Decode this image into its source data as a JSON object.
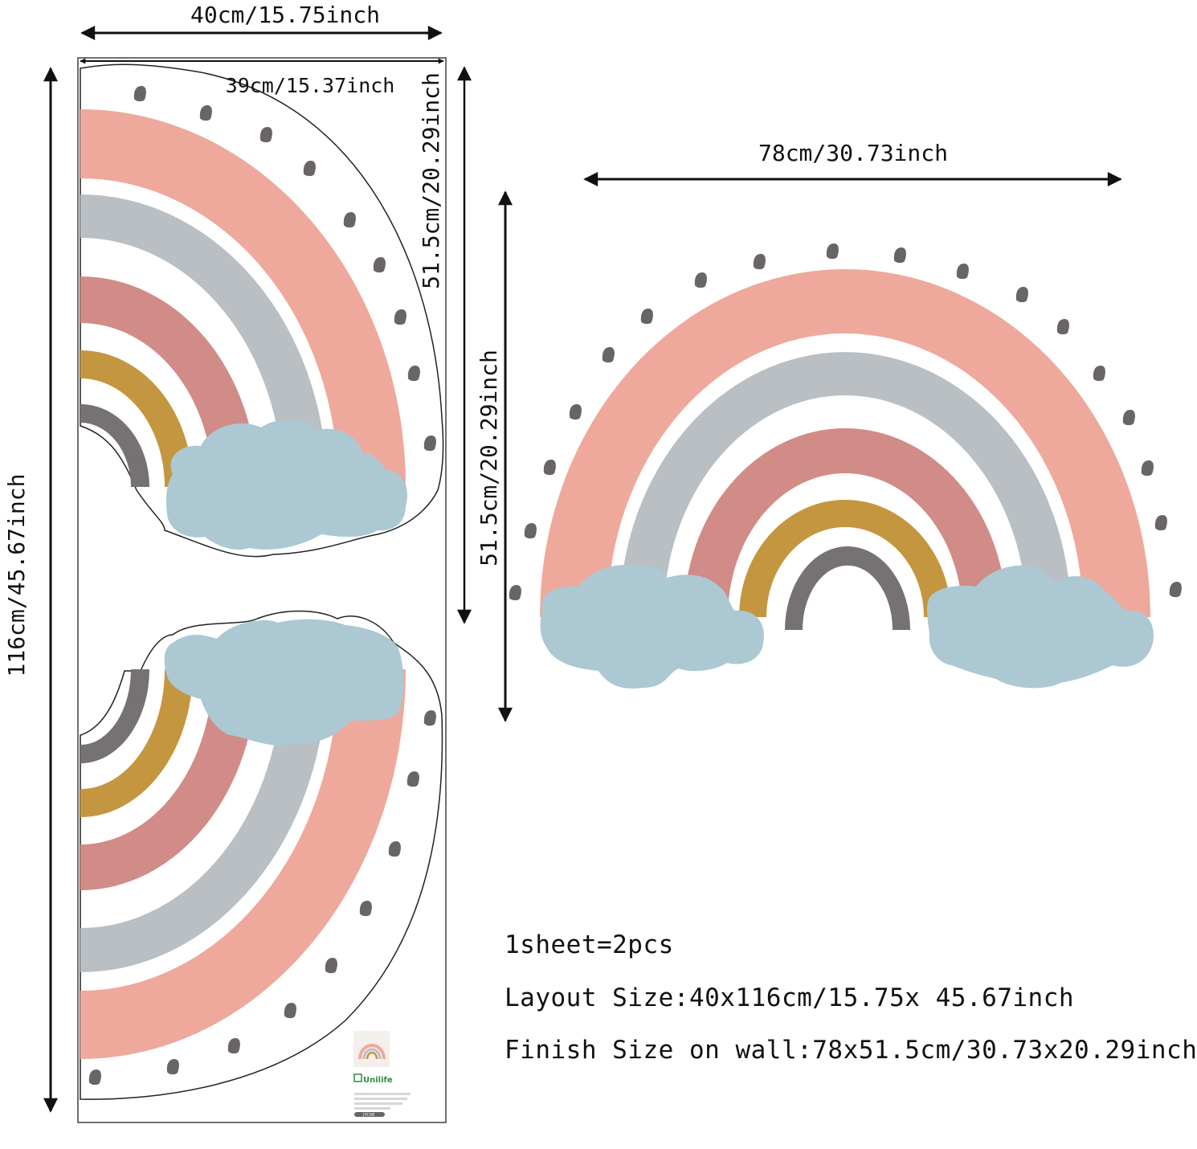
{
  "dimensions": {
    "sheet_width": "40cm/15.75inch",
    "inner_width": "39cm/15.37inch",
    "half_height": "51.5cm/20.29inch",
    "sheet_height": "116cm/45.67inch",
    "finished_width": "78cm/30.73inch",
    "finished_height": "51.5cm/20.29inch"
  },
  "info": {
    "line1": "1sheet=2pcs",
    "line2": "Layout Size:40x116cm/15.75x 45.67inch",
    "line3": "Finish Size on wall:78x51.5cm/30.73x20.29inch"
  },
  "label": {
    "brand": "Unilife",
    "code": "JYC08"
  },
  "colors": {
    "pink": "#eea99c",
    "gray": "#b9bfc3",
    "rose": "#d18c88",
    "mustard": "#c4963f",
    "charcoal": "#767172",
    "cloud": "#acc8d3",
    "dot": "#696567"
  }
}
